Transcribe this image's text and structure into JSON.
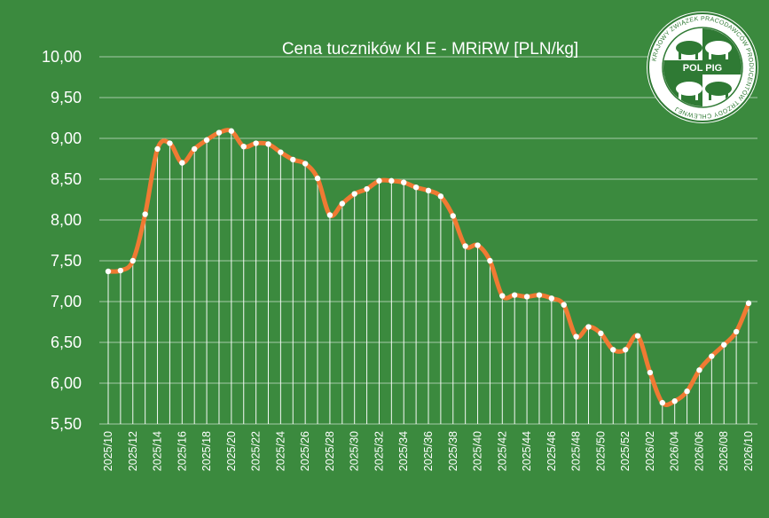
{
  "colors": {
    "background": "#3b8a3e",
    "line": "#f07a33",
    "marker": "#ffffff",
    "grid": "#ffffff",
    "logo_green": "#2f7a34"
  },
  "logo": {
    "name": "POL PIG",
    "ring_text": "KRAJOWY ZWIĄZEK PRACODAWCÓW PRODUCENTÓW TRZODY CHLEWNEJ"
  },
  "chart_data": {
    "type": "line",
    "title": "Cena tuczników Kl E - MRiRW [PLN/kg]",
    "xlabel": "",
    "ylabel": "",
    "ylim": [
      5.5,
      10.0
    ],
    "yticks": [
      "10,00",
      "9,50",
      "9,00",
      "8,50",
      "8,00",
      "7,50",
      "7,00",
      "6,50",
      "6,00",
      "5,50"
    ],
    "ytick_values": [
      10.0,
      9.5,
      9.0,
      8.5,
      8.0,
      7.5,
      7.0,
      6.5,
      6.0,
      5.5
    ],
    "grid": "horizontal",
    "x_tick_labels": [
      "2025/10",
      "2025/12",
      "2025/14",
      "2025/16",
      "2025/18",
      "2025/20",
      "2025/22",
      "2025/24",
      "2025/26",
      "2025/28",
      "2025/30",
      "2025/32",
      "2025/34",
      "2025/36",
      "2025/38",
      "2025/40",
      "2025/42",
      "2025/44",
      "2025/46",
      "2025/48",
      "2025/50",
      "2025/52",
      "2026/02",
      "2026/04",
      "2026/06",
      "2026/08",
      "2026/10"
    ],
    "x": [
      "2025/10",
      "2025/11",
      "2025/12",
      "2025/13",
      "2025/14",
      "2025/15",
      "2025/16",
      "2025/17",
      "2025/18",
      "2025/19",
      "2025/20",
      "2025/21",
      "2025/22",
      "2025/23",
      "2025/24",
      "2025/25",
      "2025/26",
      "2025/27",
      "2025/28",
      "2025/29",
      "2025/30",
      "2025/31",
      "2025/32",
      "2025/33",
      "2025/34",
      "2025/35",
      "2025/36",
      "2025/37",
      "2025/38",
      "2025/39",
      "2025/40",
      "2025/41",
      "2025/42",
      "2025/43",
      "2025/44",
      "2025/45",
      "2025/46",
      "2025/47",
      "2025/48",
      "2025/49",
      "2025/50",
      "2025/51",
      "2025/52",
      "2026/01",
      "2026/02",
      "2026/03",
      "2026/04",
      "2026/05",
      "2026/06",
      "2026/07",
      "2026/08",
      "2026/09",
      "2026/10"
    ],
    "series": [
      {
        "values": [
          7.37,
          7.38,
          7.5,
          8.07,
          8.87,
          8.94,
          8.7,
          8.87,
          8.98,
          9.07,
          9.09,
          8.9,
          8.94,
          8.93,
          8.83,
          8.74,
          8.69,
          8.51,
          8.06,
          8.2,
          8.32,
          8.38,
          8.48,
          8.48,
          8.46,
          8.4,
          8.36,
          8.29,
          8.05,
          7.68,
          7.69,
          7.5,
          7.07,
          7.08,
          7.06,
          7.08,
          7.04,
          6.96,
          6.57,
          6.69,
          6.61,
          6.41,
          6.41,
          6.58,
          6.13,
          5.76,
          5.78,
          5.9,
          6.16,
          6.33,
          6.47,
          6.63,
          6.98
        ]
      }
    ]
  }
}
